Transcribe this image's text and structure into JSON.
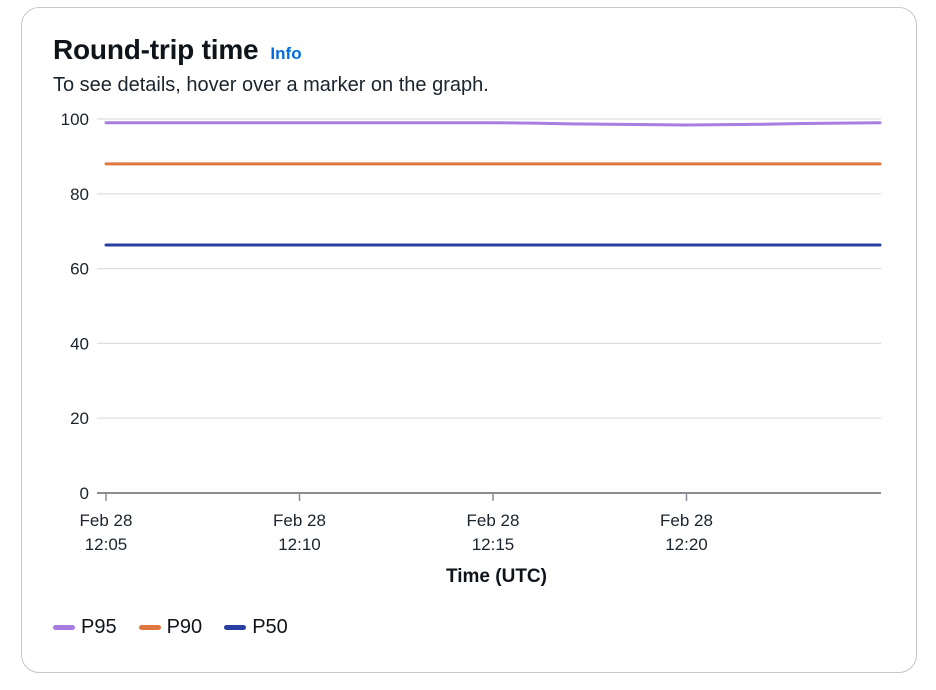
{
  "header": {
    "title": "Round-trip time",
    "info_label": "Info",
    "subtitle": "To see details, hover over a marker on the graph."
  },
  "chart_data": {
    "type": "line",
    "title": "Round-trip time",
    "xlabel": "Time (UTC)",
    "ylabel": "",
    "ylim": [
      0,
      100
    ],
    "yticks": [
      0,
      20,
      40,
      60,
      80,
      100
    ],
    "xticks": [
      {
        "t": 5,
        "line1": "Feb 28",
        "line2": "12:05"
      },
      {
        "t": 10,
        "line1": "Feb 28",
        "line2": "12:10"
      },
      {
        "t": 15,
        "line1": "Feb 28",
        "line2": "12:15"
      },
      {
        "t": 20,
        "line1": "Feb 28",
        "line2": "12:20"
      }
    ],
    "x": [
      5,
      6,
      7,
      8,
      9,
      10,
      11,
      12,
      13,
      14,
      15,
      16,
      17,
      18,
      19,
      20,
      21,
      22,
      23,
      24,
      25
    ],
    "xlim": [
      5,
      25
    ],
    "grid": true,
    "legend": "bottom-left",
    "series": [
      {
        "name": "P95",
        "color": "#a77ee0",
        "values": [
          99,
          99,
          99,
          99,
          99,
          99,
          99,
          99,
          99,
          99,
          99,
          98.9,
          98.7,
          98.6,
          98.5,
          98.4,
          98.5,
          98.6,
          98.8,
          98.9,
          99
        ]
      },
      {
        "name": "P90",
        "color": "#e0763f",
        "values": [
          88,
          88,
          88,
          88,
          88,
          88,
          88,
          88,
          88,
          88,
          88,
          88,
          88,
          88,
          88,
          88,
          88,
          88,
          88,
          88,
          88
        ]
      },
      {
        "name": "P50",
        "color": "#273fa0",
        "values": [
          66.3,
          66.3,
          66.3,
          66.3,
          66.3,
          66.3,
          66.3,
          66.3,
          66.3,
          66.3,
          66.3,
          66.3,
          66.3,
          66.3,
          66.3,
          66.3,
          66.3,
          66.3,
          66.3,
          66.3,
          66.3
        ]
      }
    ]
  }
}
